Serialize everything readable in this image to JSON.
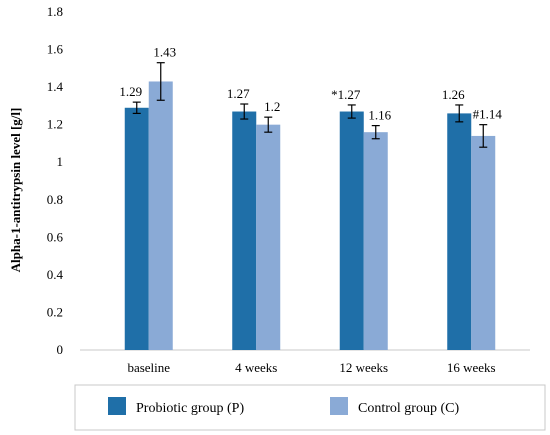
{
  "chart_data": {
    "type": "bar",
    "ylabel": "Alpha-1-antitrypsin level [g/l]",
    "xlabel": "",
    "ylim": [
      0,
      1.8
    ],
    "yticks": [
      0,
      0.2,
      0.4,
      0.6,
      0.8,
      1,
      1.2,
      1.4,
      1.6,
      1.8
    ],
    "categories": [
      "baseline",
      "4 weeks",
      "12 weeks",
      "16 weeks"
    ],
    "series": [
      {
        "name": "Probiotic group (P)",
        "color": "#1f6fa8",
        "values": [
          1.29,
          1.27,
          1.27,
          1.26
        ],
        "error": [
          0.03,
          0.04,
          0.035,
          0.045
        ],
        "labels": [
          "1.29",
          "1.27",
          "*1.27",
          "1.26"
        ]
      },
      {
        "name": "Control group (C)",
        "color": "#8aaad6",
        "values": [
          1.43,
          1.2,
          1.16,
          1.14
        ],
        "error": [
          0.1,
          0.04,
          0.035,
          0.06
        ],
        "labels": [
          "1.43",
          "1.2",
          "1.16",
          "#1.14"
        ]
      }
    ],
    "legend_position": "bottom",
    "grid": false
  }
}
